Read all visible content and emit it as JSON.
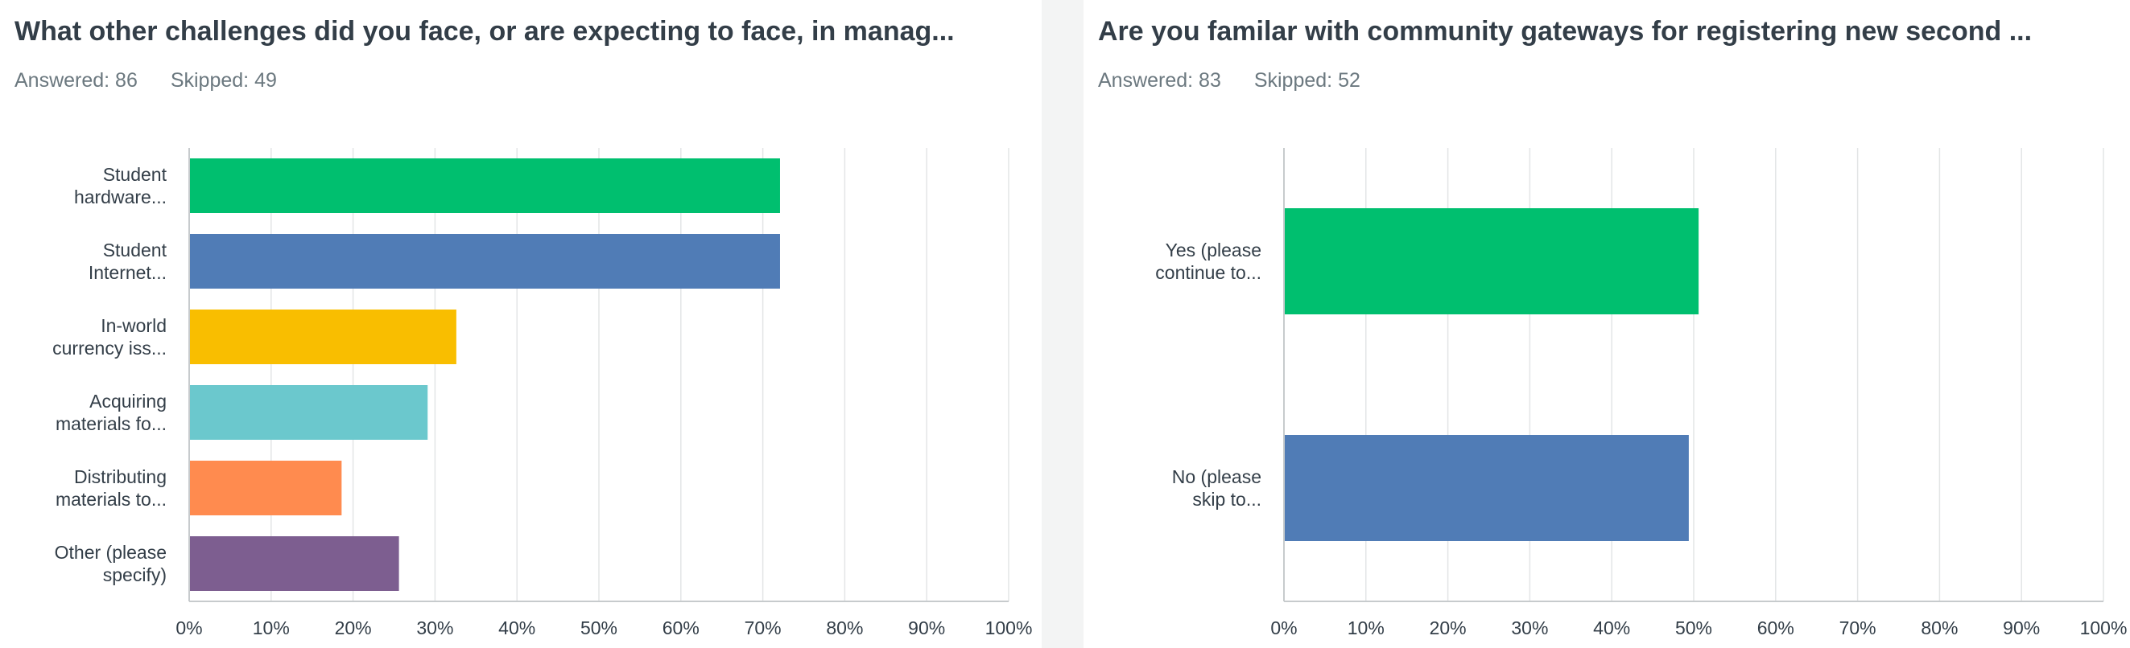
{
  "colors": {
    "series": [
      "#00bf6f",
      "#507cb6",
      "#f9be00",
      "#6bc8cd",
      "#ff8b4f",
      "#7d5e90"
    ],
    "grid": "#e3e5e6",
    "axis": "#c7cbcd"
  },
  "questions": [
    {
      "title": "What other challenges did you face, or are expecting to face, in manag...",
      "answered": "Answered: 86",
      "skipped": "Skipped: 49"
    },
    {
      "title": "Are you familar with community gateways for registering new second ...",
      "answered": "Answered: 83",
      "skipped": "Skipped: 52"
    }
  ],
  "chart_data": [
    {
      "type": "bar",
      "orientation": "horizontal",
      "categories": [
        [
          "Student",
          "hardware..."
        ],
        [
          "Student",
          "Internet..."
        ],
        [
          "In-world",
          "currency iss..."
        ],
        [
          "Acquiring",
          "materials fo..."
        ],
        [
          "Distributing",
          "materials to..."
        ],
        [
          "Other (please",
          "specify)"
        ]
      ],
      "values": [
        72.1,
        72.1,
        32.6,
        29.1,
        18.6,
        25.6
      ],
      "x_ticks": [
        "0%",
        "10%",
        "20%",
        "30%",
        "40%",
        "50%",
        "60%",
        "70%",
        "80%",
        "90%",
        "100%"
      ],
      "xlim": [
        0,
        100
      ],
      "grid": true
    },
    {
      "type": "bar",
      "orientation": "horizontal",
      "categories": [
        [
          "Yes (please",
          "continue to..."
        ],
        [
          "No (please",
          "skip to..."
        ]
      ],
      "values": [
        50.6,
        49.4
      ],
      "x_ticks": [
        "0%",
        "10%",
        "20%",
        "30%",
        "40%",
        "50%",
        "60%",
        "70%",
        "80%",
        "90%",
        "100%"
      ],
      "xlim": [
        0,
        100
      ],
      "grid": true
    }
  ]
}
